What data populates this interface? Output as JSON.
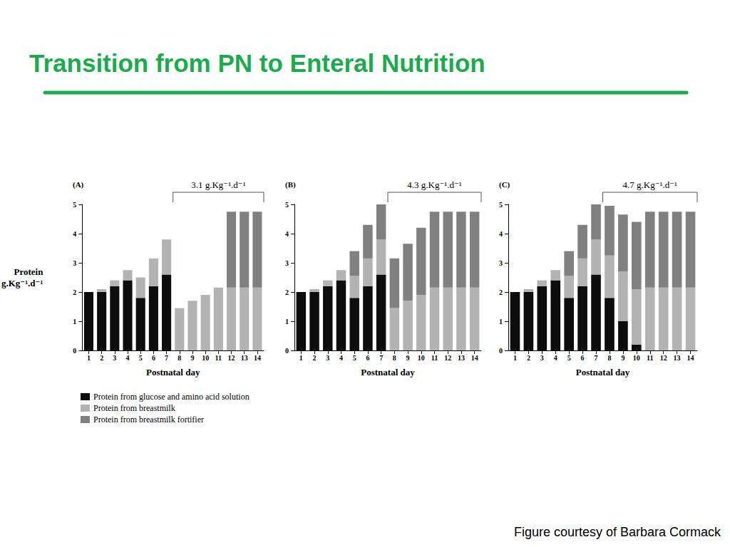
{
  "slide": {
    "title": "Transition from PN to Enteral Nutrition",
    "footer": "Figure courtesy of Barbara Cormack"
  },
  "chart_data": [
    {
      "type": "bar",
      "title": "(A)",
      "y_label": "Protein\ng.Kg⁻¹.d⁻¹",
      "x_label": "Postnatal day",
      "categories": [
        1,
        2,
        3,
        4,
        5,
        6,
        7,
        8,
        9,
        10,
        11,
        12,
        13,
        14
      ],
      "stacked": true,
      "grid": false,
      "legend": "bottom left",
      "ylim": [
        0,
        5
      ],
      "yticks": [
        0,
        1,
        2,
        3,
        4,
        5
      ],
      "annotation": {
        "text": "3.1 g.Kg⁻¹.d⁻¹",
        "from": 8,
        "to": 14
      },
      "series": [
        {
          "name": "Protein from glucose and amino acid solution",
          "color": "#0d0d0d",
          "values": [
            2.0,
            2.0,
            2.2,
            2.4,
            1.8,
            2.2,
            2.6,
            0,
            0,
            0,
            0,
            0,
            0,
            0
          ]
        },
        {
          "name": "Protein from breastmilk",
          "color": "#b3b3b3",
          "values": [
            0,
            0.1,
            0.2,
            0.35,
            0.7,
            0.95,
            1.2,
            1.45,
            1.7,
            1.9,
            2.15,
            2.15,
            2.15,
            2.15
          ]
        },
        {
          "name": "Protein from breastmilk fortifier",
          "color": "#808080",
          "values": [
            0,
            0,
            0,
            0,
            0,
            0,
            0,
            0,
            0,
            0,
            0,
            2.6,
            2.6,
            2.6
          ]
        }
      ]
    },
    {
      "type": "bar",
      "title": "(B)",
      "x_label": "Postnatal day",
      "categories": [
        1,
        2,
        3,
        4,
        5,
        6,
        7,
        8,
        9,
        10,
        11,
        12,
        13,
        14
      ],
      "stacked": true,
      "grid": false,
      "ylim": [
        0,
        5
      ],
      "yticks": [
        0,
        1,
        2,
        3,
        4,
        5
      ],
      "annotation": {
        "text": "4.3 g.Kg⁻¹.d⁻¹",
        "from": 8,
        "to": 14
      },
      "series": [
        {
          "name": "Protein from glucose and amino acid solution",
          "color": "#0d0d0d",
          "values": [
            2.0,
            2.0,
            2.2,
            2.4,
            1.8,
            2.2,
            2.6,
            0,
            0,
            0,
            0,
            0,
            0,
            0
          ]
        },
        {
          "name": "Protein from breastmilk",
          "color": "#b3b3b3",
          "values": [
            0,
            0.1,
            0.2,
            0.35,
            0.75,
            0.95,
            1.2,
            1.45,
            1.7,
            1.9,
            2.15,
            2.15,
            2.15,
            2.15
          ]
        },
        {
          "name": "Protein from breastmilk fortifier",
          "color": "#808080",
          "values": [
            0,
            0,
            0,
            0,
            0.85,
            1.15,
            1.2,
            1.7,
            1.95,
            2.3,
            2.6,
            2.6,
            2.6,
            2.6
          ]
        }
      ]
    },
    {
      "type": "bar",
      "title": "(C)",
      "x_label": "Postnatal day",
      "categories": [
        1,
        2,
        3,
        4,
        5,
        6,
        7,
        8,
        9,
        10,
        11,
        12,
        13,
        14
      ],
      "stacked": true,
      "grid": false,
      "ylim": [
        0,
        5
      ],
      "yticks": [
        0,
        1,
        2,
        3,
        4,
        5
      ],
      "annotation": {
        "text": "4.7 g.Kg⁻¹.d⁻¹",
        "from": 8,
        "to": 14
      },
      "series": [
        {
          "name": "Protein from glucose and amino acid solution",
          "color": "#0d0d0d",
          "values": [
            2.0,
            2.0,
            2.2,
            2.4,
            1.8,
            2.2,
            2.6,
            1.8,
            1.0,
            0.2,
            0,
            0,
            0,
            0
          ]
        },
        {
          "name": "Protein from breastmilk",
          "color": "#b3b3b3",
          "values": [
            0,
            0.1,
            0.2,
            0.35,
            0.75,
            0.95,
            1.2,
            1.45,
            1.7,
            1.9,
            2.15,
            2.15,
            2.15,
            2.15
          ]
        },
        {
          "name": "Protein from breastmilk fortifier",
          "color": "#808080",
          "values": [
            0,
            0,
            0,
            0,
            0.85,
            1.15,
            1.2,
            1.7,
            1.95,
            2.3,
            2.6,
            2.6,
            2.6,
            2.6
          ]
        }
      ]
    }
  ]
}
